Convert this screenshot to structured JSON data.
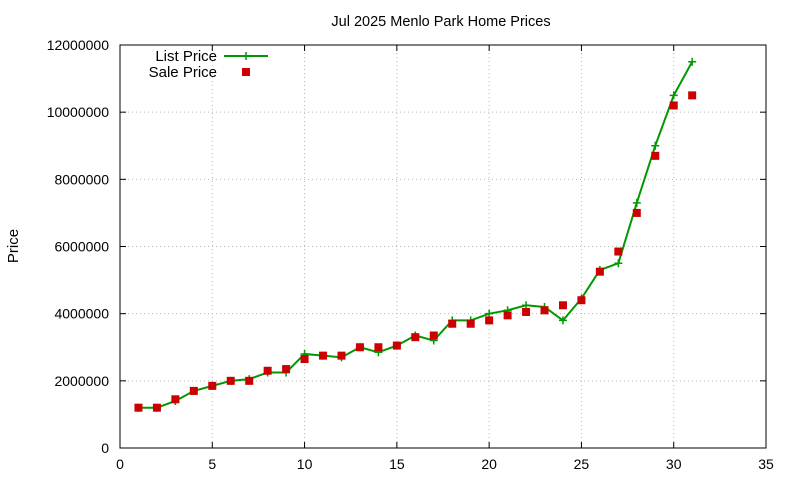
{
  "chart_data": {
    "type": "line",
    "title": "Jul 2025 Menlo Park Home Prices",
    "xlabel": "",
    "ylabel": "Price",
    "xlim": [
      0,
      35
    ],
    "ylim": [
      0,
      12000000
    ],
    "xticks": [
      0,
      5,
      10,
      15,
      20,
      25,
      30,
      35
    ],
    "yticks": [
      0,
      2000000,
      4000000,
      6000000,
      8000000,
      10000000,
      12000000
    ],
    "grid": true,
    "legend_position": "top-left",
    "series": [
      {
        "name": "List Price",
        "style": "line-with-plus",
        "color": "#009900",
        "x": [
          1,
          2,
          3,
          4,
          5,
          6,
          7,
          8,
          9,
          10,
          11,
          12,
          13,
          14,
          15,
          16,
          17,
          18,
          19,
          20,
          21,
          22,
          23,
          24,
          25,
          26,
          27,
          28,
          29,
          30,
          31
        ],
        "y": [
          1200000,
          1200000,
          1400000,
          1700000,
          1850000,
          2000000,
          2050000,
          2250000,
          2250000,
          2800000,
          2750000,
          2700000,
          3000000,
          2850000,
          3050000,
          3350000,
          3200000,
          3800000,
          3800000,
          4000000,
          4100000,
          4250000,
          4200000,
          3800000,
          4450000,
          5300000,
          5500000,
          7300000,
          9000000,
          10500000,
          11500000
        ]
      },
      {
        "name": "Sale Price",
        "style": "square-markers",
        "color": "#cc0000",
        "x": [
          1,
          2,
          3,
          4,
          5,
          6,
          7,
          8,
          9,
          10,
          11,
          12,
          13,
          14,
          15,
          16,
          17,
          18,
          19,
          20,
          21,
          22,
          23,
          24,
          25,
          26,
          27,
          28,
          29,
          30,
          31
        ],
        "y": [
          1200000,
          1200000,
          1450000,
          1700000,
          1850000,
          2000000,
          2000000,
          2300000,
          2350000,
          2650000,
          2750000,
          2750000,
          3000000,
          3000000,
          3050000,
          3300000,
          3350000,
          3700000,
          3700000,
          3800000,
          3950000,
          4050000,
          4100000,
          4250000,
          4400000,
          5250000,
          5850000,
          7000000,
          8700000,
          10200000,
          10500000
        ]
      }
    ]
  }
}
